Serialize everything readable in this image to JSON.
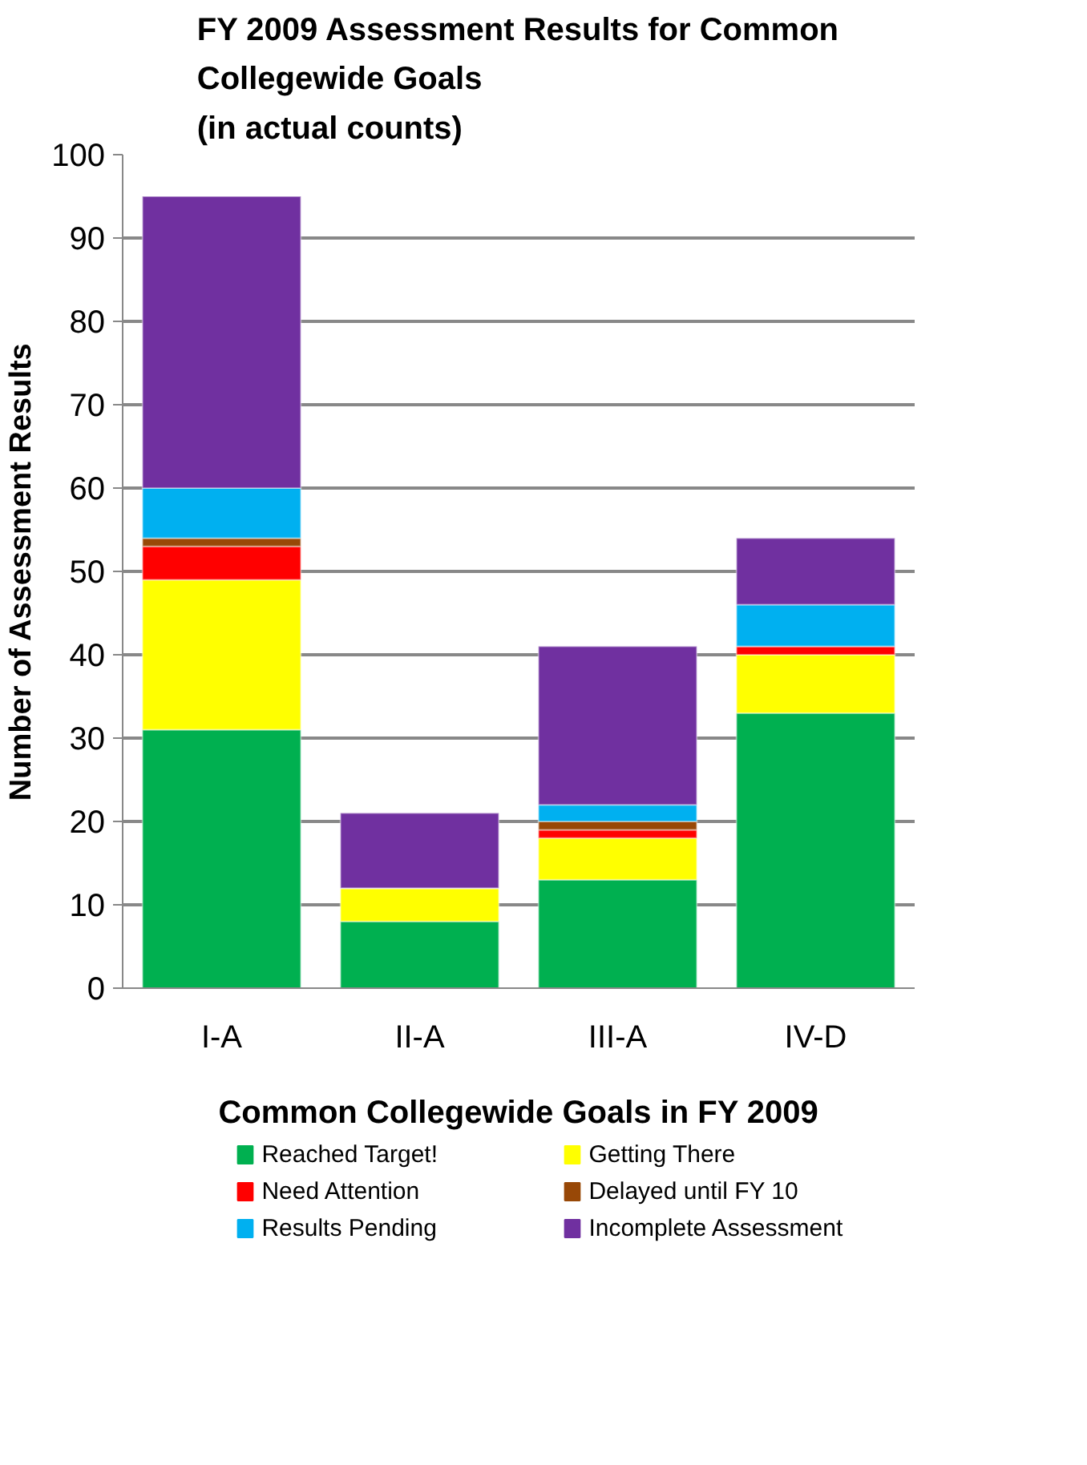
{
  "chart_data": {
    "type": "bar",
    "stacked": true,
    "title": "FY 2009 Assessment Results for Common\nCollegewide Goals\n(in actual counts)",
    "xlabel": "Common Collegewide Goals in FY 2009",
    "ylabel": "Number of Assessment Results",
    "categories": [
      "I-A",
      "II-A",
      "III-A",
      "IV-D"
    ],
    "series": [
      {
        "name": "Reached Target!",
        "color": "#00b050",
        "values": [
          31,
          8,
          13,
          33
        ]
      },
      {
        "name": "Getting There",
        "color": "#ffff00",
        "values": [
          18,
          4,
          5,
          7
        ]
      },
      {
        "name": "Need Attention",
        "color": "#ff0000",
        "values": [
          4,
          0,
          1,
          1
        ]
      },
      {
        "name": "Delayed until FY 10",
        "color": "#984807",
        "values": [
          1,
          0,
          1,
          0
        ]
      },
      {
        "name": "Results Pending",
        "color": "#00b0f0",
        "values": [
          6,
          0,
          2,
          5
        ]
      },
      {
        "name": "Incomplete Assessment",
        "color": "#7030a0",
        "values": [
          35,
          9,
          19,
          8
        ]
      }
    ],
    "ylim": [
      0,
      100
    ],
    "yticks": [
      0,
      10,
      20,
      30,
      40,
      50,
      60,
      70,
      80,
      90,
      100
    ],
    "grid": "y",
    "legend": "bottom"
  }
}
